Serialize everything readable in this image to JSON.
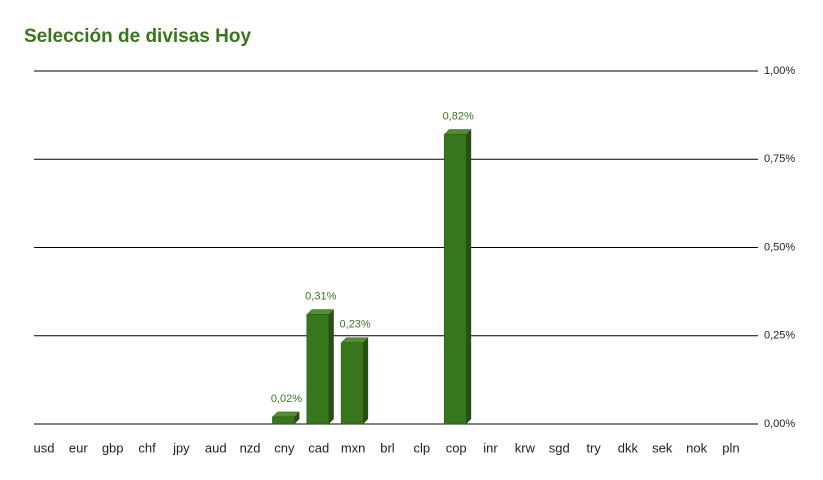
{
  "chart_data": {
    "type": "bar3d",
    "title": "Selección de divisas Hoy",
    "categories": [
      "usd",
      "eur",
      "gbp",
      "chf",
      "jpy",
      "aud",
      "nzd",
      "cny",
      "cad",
      "mxn",
      "brl",
      "clp",
      "cop",
      "inr",
      "krw",
      "sgd",
      "try",
      "dkk",
      "sek",
      "nok",
      "pln"
    ],
    "values": [
      0,
      0,
      0,
      0,
      0,
      0,
      0,
      0.02,
      0.31,
      0.23,
      0,
      0,
      0.82,
      0,
      0,
      0,
      0,
      0,
      0,
      0,
      0
    ],
    "value_labels": [
      null,
      null,
      null,
      null,
      null,
      null,
      null,
      "0,02%",
      "0,31%",
      "0,23%",
      null,
      null,
      "0,82%",
      null,
      null,
      null,
      null,
      null,
      null,
      null,
      null
    ],
    "color": "#38761d",
    "ylim": [
      0,
      1
    ],
    "yticks": [
      {
        "value": 0,
        "label": "0,00%"
      },
      {
        "value": 0.25,
        "label": "0,25%"
      },
      {
        "value": 0.5,
        "label": "0,50%"
      },
      {
        "value": 0.75,
        "label": "0,75%"
      },
      {
        "value": 1,
        "label": "1,00%"
      }
    ],
    "grid": true
  }
}
